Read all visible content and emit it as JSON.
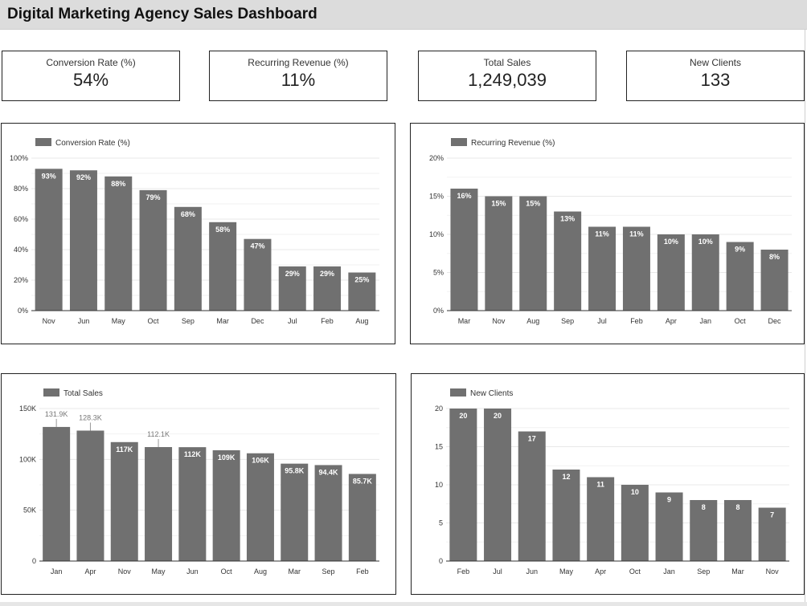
{
  "header": {
    "title": "Digital Marketing Agency Sales Dashboard"
  },
  "kpis": [
    {
      "label": "Conversion Rate (%)",
      "value": "54%"
    },
    {
      "label": "Recurring Revenue (%)",
      "value": "11%"
    },
    {
      "label": "Total Sales",
      "value": "1,249,039"
    },
    {
      "label": "New Clients",
      "value": "133"
    }
  ],
  "colors": {
    "bar": "#707070",
    "grid": "#e8e8e8",
    "axis": "#333333",
    "label_inside": "#ffffff",
    "label_outside": "#777777"
  },
  "chart_data": [
    {
      "type": "bar",
      "title": "",
      "legend": "Conversion Rate (%)",
      "legend_position": "top-left",
      "categories": [
        "Nov",
        "Jun",
        "May",
        "Oct",
        "Sep",
        "Mar",
        "Dec",
        "Jul",
        "Feb",
        "Aug"
      ],
      "values": [
        93,
        92,
        88,
        79,
        68,
        58,
        47,
        29,
        29,
        25
      ],
      "data_labels": [
        "93%",
        "92%",
        "88%",
        "79%",
        "68%",
        "58%",
        "47%",
        "29%",
        "29%",
        "25%"
      ],
      "yticks": [
        0,
        20,
        40,
        60,
        80,
        100
      ],
      "ytick_labels": [
        "0%",
        "20%",
        "40%",
        "60%",
        "80%",
        "100%"
      ],
      "ylim": [
        0,
        100
      ],
      "grid": true
    },
    {
      "type": "bar",
      "title": "",
      "legend": "Recurring Revenue (%)",
      "legend_position": "top-left",
      "categories": [
        "Mar",
        "Nov",
        "Aug",
        "Sep",
        "Jul",
        "Feb",
        "Apr",
        "Jan",
        "Oct",
        "Dec"
      ],
      "values": [
        16,
        15,
        15,
        13,
        11,
        11,
        10,
        10,
        9,
        8
      ],
      "data_labels": [
        "16%",
        "15%",
        "15%",
        "13%",
        "11%",
        "11%",
        "10%",
        "10%",
        "9%",
        "8%"
      ],
      "yticks": [
        0,
        5,
        10,
        15,
        20
      ],
      "ytick_labels": [
        "0%",
        "5%",
        "10%",
        "15%",
        "20%"
      ],
      "ylim": [
        0,
        20
      ],
      "grid": true
    },
    {
      "type": "bar",
      "title": "",
      "legend": "Total Sales",
      "legend_position": "top-left",
      "categories": [
        "Jan",
        "Apr",
        "Nov",
        "May",
        "Jun",
        "Oct",
        "Aug",
        "Mar",
        "Sep",
        "Feb"
      ],
      "values": [
        131900,
        128300,
        117000,
        112100,
        112000,
        109000,
        106000,
        95800,
        94400,
        85700
      ],
      "data_labels": [
        "131.9K",
        "128.3K",
        "117K",
        "112.1K",
        "112K",
        "109K",
        "106K",
        "95.8K",
        "94.4K",
        "85.7K"
      ],
      "label_outside": [
        true,
        true,
        false,
        true,
        false,
        false,
        false,
        false,
        false,
        false
      ],
      "yticks": [
        0,
        50000,
        100000,
        150000
      ],
      "ytick_labels": [
        "0",
        "50K",
        "100K",
        "150K"
      ],
      "ylim": [
        0,
        150000
      ],
      "grid": true
    },
    {
      "type": "bar",
      "title": "",
      "legend": "New Clients",
      "legend_position": "top-left",
      "categories": [
        "Feb",
        "Jul",
        "Jun",
        "May",
        "Apr",
        "Oct",
        "Jan",
        "Sep",
        "Mar",
        "Nov"
      ],
      "values": [
        20,
        20,
        17,
        12,
        11,
        10,
        9,
        8,
        8,
        7
      ],
      "data_labels": [
        "20",
        "20",
        "17",
        "12",
        "11",
        "10",
        "9",
        "8",
        "8",
        "7"
      ],
      "yticks": [
        0,
        5,
        10,
        15,
        20
      ],
      "ytick_labels": [
        "0",
        "5",
        "10",
        "15",
        "20"
      ],
      "ylim": [
        0,
        20
      ],
      "grid": true
    }
  ]
}
